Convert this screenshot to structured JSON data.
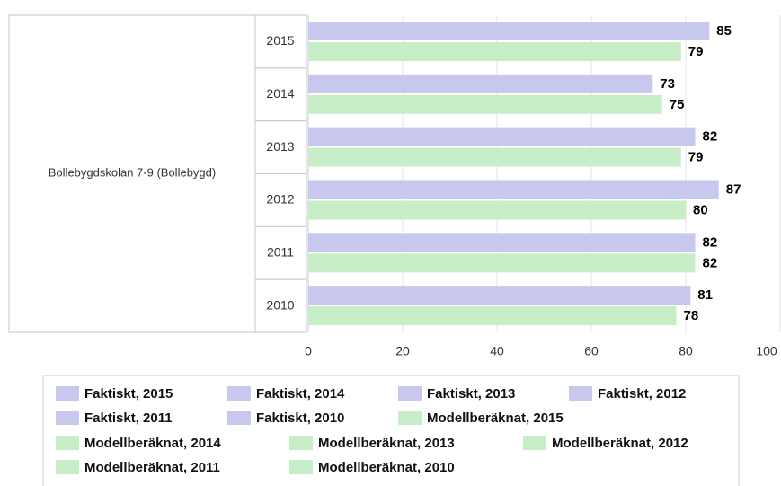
{
  "chart_data": {
    "type": "bar",
    "orientation": "horizontal",
    "group": "Bollebygdskolan 7-9 (Bollebygd)",
    "categories": [
      "2015",
      "2014",
      "2013",
      "2012",
      "2011",
      "2010"
    ],
    "series": [
      {
        "name": "Faktiskt, 2015",
        "color": "#c8c8ee",
        "values": [
          85,
          null,
          null,
          null,
          null,
          null
        ]
      },
      {
        "name": "Faktiskt, 2014",
        "color": "#c8c8ee",
        "values": [
          null,
          73,
          null,
          null,
          null,
          null
        ]
      },
      {
        "name": "Faktiskt, 2013",
        "color": "#c8c8ee",
        "values": [
          null,
          null,
          82,
          null,
          null,
          null
        ]
      },
      {
        "name": "Faktiskt, 2012",
        "color": "#c8c8ee",
        "values": [
          null,
          null,
          null,
          87,
          null,
          null
        ]
      },
      {
        "name": "Faktiskt, 2011",
        "color": "#c8c8ee",
        "values": [
          null,
          null,
          null,
          null,
          82,
          null
        ]
      },
      {
        "name": "Faktiskt, 2010",
        "color": "#c8c8ee",
        "values": [
          null,
          null,
          null,
          null,
          null,
          81
        ]
      },
      {
        "name": "Modellberäknat, 2015",
        "color": "#c8eec8",
        "values": [
          79,
          null,
          null,
          null,
          null,
          null
        ]
      },
      {
        "name": "Modellberäknat, 2014",
        "color": "#c8eec8",
        "values": [
          null,
          75,
          null,
          null,
          null,
          null
        ]
      },
      {
        "name": "Modellberäknat, 2013",
        "color": "#c8eec8",
        "values": [
          null,
          null,
          79,
          null,
          null,
          null
        ]
      },
      {
        "name": "Modellberäknat, 2012",
        "color": "#c8eec8",
        "values": [
          null,
          null,
          null,
          80,
          null,
          null
        ]
      },
      {
        "name": "Modellberäknat, 2011",
        "color": "#c8eec8",
        "values": [
          null,
          null,
          null,
          null,
          82,
          null
        ]
      },
      {
        "name": "Modellberäknat, 2010",
        "color": "#c8eec8",
        "values": [
          null,
          null,
          null,
          null,
          null,
          78
        ]
      }
    ],
    "xlim": [
      0,
      100
    ],
    "xticks": [
      0,
      20,
      40,
      60,
      80,
      100
    ],
    "grid": true
  }
}
